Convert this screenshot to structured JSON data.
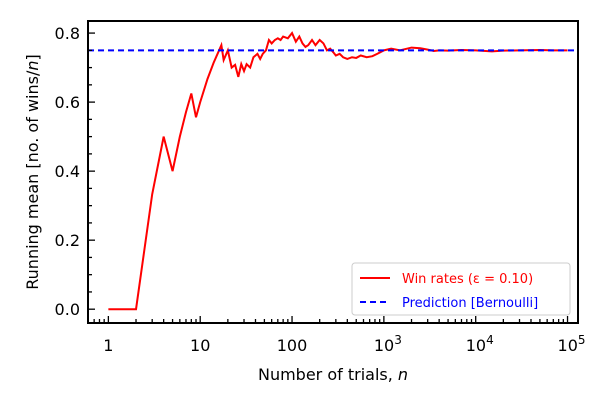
{
  "chart_data": {
    "type": "line",
    "xscale": "log",
    "xlabel": "Number of trials, n",
    "ylabel": "Running mean [no. of wins/n]",
    "xlim": [
      0.6,
      130000
    ],
    "ylim": [
      -0.04,
      0.835
    ],
    "x_ticks": [
      {
        "value": 1,
        "label": "1"
      },
      {
        "value": 10,
        "label": "10"
      },
      {
        "value": 100,
        "label": "100"
      },
      {
        "value": 1000,
        "label": "10",
        "sup": "3"
      },
      {
        "value": 10000,
        "label": "10",
        "sup": "4"
      },
      {
        "value": 100000,
        "label": "10",
        "sup": "5"
      }
    ],
    "y_ticks": [
      {
        "value": 0.0,
        "label": "0.0"
      },
      {
        "value": 0.2,
        "label": "0.2"
      },
      {
        "value": 0.4,
        "label": "0.4"
      },
      {
        "value": 0.6,
        "label": "0.6"
      },
      {
        "value": 0.8,
        "label": "0.8"
      }
    ],
    "series": [
      {
        "name": "Win rates (ε = 0.10)",
        "color": "#ff0000",
        "style": "solid",
        "x": [
          1,
          2,
          3,
          4,
          5,
          6,
          7,
          8,
          9,
          10,
          12,
          14,
          17,
          18,
          20,
          22,
          24,
          26,
          28,
          30,
          32,
          35,
          38,
          42,
          45,
          48,
          52,
          56,
          60,
          65,
          70,
          75,
          80,
          90,
          100,
          110,
          120,
          130,
          140,
          150,
          165,
          180,
          200,
          220,
          240,
          260,
          280,
          300,
          330,
          360,
          400,
          450,
          500,
          560,
          650,
          750,
          850,
          1000,
          1200,
          1500,
          2000,
          2500,
          3000,
          3500,
          4000,
          5000,
          7000,
          10000,
          15000,
          20000,
          30000,
          50000,
          70000,
          100000
        ],
        "y": [
          0.0,
          0.0,
          0.333,
          0.5,
          0.4,
          0.5,
          0.571,
          0.625,
          0.556,
          0.6,
          0.667,
          0.714,
          0.765,
          0.722,
          0.75,
          0.7,
          0.708,
          0.673,
          0.71,
          0.69,
          0.71,
          0.7,
          0.73,
          0.74,
          0.725,
          0.74,
          0.75,
          0.78,
          0.77,
          0.78,
          0.785,
          0.78,
          0.79,
          0.785,
          0.8,
          0.775,
          0.79,
          0.77,
          0.76,
          0.765,
          0.78,
          0.765,
          0.78,
          0.77,
          0.75,
          0.755,
          0.745,
          0.735,
          0.74,
          0.73,
          0.725,
          0.73,
          0.728,
          0.735,
          0.73,
          0.733,
          0.74,
          0.75,
          0.755,
          0.75,
          0.758,
          0.756,
          0.752,
          0.748,
          0.75,
          0.749,
          0.751,
          0.75,
          0.747,
          0.749,
          0.75,
          0.751,
          0.75,
          0.75
        ]
      },
      {
        "name": "Prediction [Bernoulli]",
        "color": "#0000ff",
        "style": "dashed",
        "x": [
          0.6,
          130000
        ],
        "y": [
          0.75,
          0.75
        ]
      }
    ],
    "legend_position": "bottom-right",
    "grid": false
  }
}
